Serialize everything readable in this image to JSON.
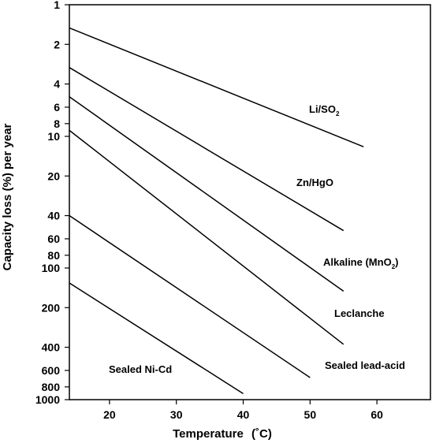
{
  "chart_data": {
    "type": "line",
    "xlabel": "Temperature",
    "xlabel_unit": "(˚C)",
    "ylabel": "Capacity loss (%) per year",
    "xlim": [
      14,
      68
    ],
    "ylim": [
      1,
      1000
    ],
    "y_scale": "log",
    "y_inverted": true,
    "x_ticks": [
      20,
      30,
      40,
      50,
      60
    ],
    "y_ticks": [
      1,
      2,
      4,
      6,
      8,
      10,
      20,
      40,
      60,
      80,
      100,
      200,
      400,
      600,
      800,
      1000
    ],
    "series": [
      {
        "name": "Li/SO",
        "subscript": "2",
        "x": [
          14,
          58
        ],
        "y": [
          1.5,
          12
        ]
      },
      {
        "name": "Zn/HgO",
        "x": [
          14,
          55
        ],
        "y": [
          3,
          52
        ]
      },
      {
        "name": "Alkaline (MnO",
        "subscript": "2",
        "suffix": ")",
        "x": [
          14,
          55
        ],
        "y": [
          5,
          150
        ]
      },
      {
        "name": "Leclanche",
        "x": [
          14,
          55
        ],
        "y": [
          9,
          380
        ]
      },
      {
        "name": "Sealed lead-acid",
        "x": [
          14,
          50
        ],
        "y": [
          40,
          680
        ]
      },
      {
        "name": "Sealed Ni-Cd",
        "x": [
          14,
          40
        ],
        "y": [
          130,
          900
        ]
      }
    ]
  }
}
